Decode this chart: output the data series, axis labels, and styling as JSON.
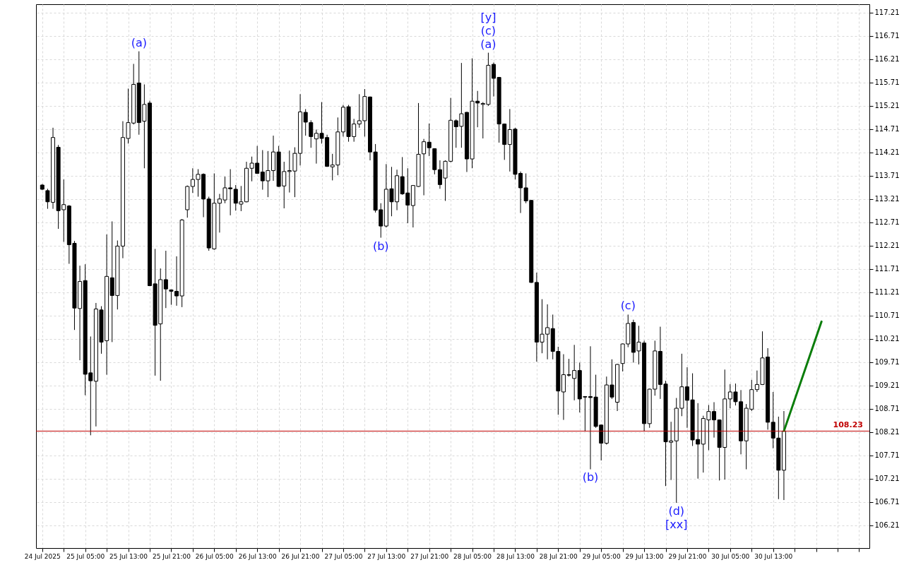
{
  "chart_data": {
    "type": "candlestick",
    "xlim": [
      "2025-07-24T20:30",
      "2025-07-31T06:15"
    ],
    "ylim": [
      105.72,
      117.39
    ],
    "yticks": [
      106.21,
      106.71,
      107.21,
      107.71,
      108.21,
      108.71,
      109.21,
      109.71,
      110.21,
      110.71,
      111.21,
      111.71,
      112.21,
      112.71,
      113.21,
      113.71,
      114.21,
      114.71,
      115.21,
      115.71,
      116.21,
      116.71,
      117.21
    ],
    "xticks": [
      {
        "value": "2025-07-24T21:00",
        "label": "24 Jul 2025"
      },
      {
        "value": "2025-07-25T01:00",
        "label": null
      },
      {
        "value": "2025-07-25T05:00",
        "label": "25 Jul 05:00"
      },
      {
        "value": "2025-07-25T09:00",
        "label": null
      },
      {
        "value": "2025-07-25T13:00",
        "label": "25 Jul 13:00"
      },
      {
        "value": "2025-07-25T17:00",
        "label": null
      },
      {
        "value": "2025-07-25T21:00",
        "label": "25 Jul 21:00"
      },
      {
        "value": "2025-07-26T01:00",
        "label": null
      },
      {
        "value": "2025-07-26T05:00",
        "label": "26 Jul 05:00"
      },
      {
        "value": "2025-07-26T09:00",
        "label": null
      },
      {
        "value": "2025-07-26T13:00",
        "label": "26 Jul 13:00"
      },
      {
        "value": "2025-07-26T17:00",
        "label": null
      },
      {
        "value": "2025-07-26T21:00",
        "label": "26 Jul 21:00"
      },
      {
        "value": "2025-07-27T01:00",
        "label": null
      },
      {
        "value": "2025-07-27T05:00",
        "label": "27 Jul 05:00"
      },
      {
        "value": "2025-07-27T09:00",
        "label": null
      },
      {
        "value": "2025-07-27T13:00",
        "label": "27 Jul 13:00"
      },
      {
        "value": "2025-07-27T17:00",
        "label": null
      },
      {
        "value": "2025-07-27T21:00",
        "label": "27 Jul 21:00"
      },
      {
        "value": "2025-07-28T01:00",
        "label": null
      },
      {
        "value": "2025-07-28T05:00",
        "label": "28 Jul 05:00"
      },
      {
        "value": "2025-07-28T09:00",
        "label": null
      },
      {
        "value": "2025-07-28T13:00",
        "label": "28 Jul 13:00"
      },
      {
        "value": "2025-07-28T17:00",
        "label": null
      },
      {
        "value": "2025-07-28T21:00",
        "label": "28 Jul 21:00"
      },
      {
        "value": "2025-07-29T01:00",
        "label": null
      },
      {
        "value": "2025-07-29T05:00",
        "label": "29 Jul 05:00"
      },
      {
        "value": "2025-07-29T09:00",
        "label": null
      },
      {
        "value": "2025-07-29T13:00",
        "label": "29 Jul 13:00"
      },
      {
        "value": "2025-07-29T17:00",
        "label": null
      },
      {
        "value": "2025-07-29T21:00",
        "label": "29 Jul 21:00"
      },
      {
        "value": "2025-07-30T01:00",
        "label": null
      },
      {
        "value": "2025-07-30T05:00",
        "label": "30 Jul 05:00"
      },
      {
        "value": "2025-07-30T09:00",
        "label": null
      },
      {
        "value": "2025-07-30T13:00",
        "label": "30 Jul 13:00"
      },
      {
        "value": "2025-07-30T17:00",
        "label": null
      },
      {
        "value": "2025-07-30T21:00",
        "label": null
      },
      {
        "value": "2025-07-31T01:00",
        "label": null
      },
      {
        "value": "2025-07-31T05:00",
        "label": null
      }
    ],
    "grid": true,
    "x": [
      "2025-07-24T21:00",
      "2025-07-24T22:00",
      "2025-07-24T23:00",
      "2025-07-25T00:00",
      "2025-07-25T01:00",
      "2025-07-25T02:00",
      "2025-07-25T03:00",
      "2025-07-25T04:00",
      "2025-07-25T05:00",
      "2025-07-25T06:00",
      "2025-07-25T07:00",
      "2025-07-25T08:00",
      "2025-07-25T09:00",
      "2025-07-25T10:00",
      "2025-07-25T11:00",
      "2025-07-25T12:00",
      "2025-07-25T13:00",
      "2025-07-25T14:00",
      "2025-07-25T15:00",
      "2025-07-25T16:00",
      "2025-07-25T17:00",
      "2025-07-25T18:00",
      "2025-07-25T19:00",
      "2025-07-25T20:00",
      "2025-07-25T21:00",
      "2025-07-25T22:00",
      "2025-07-25T23:00",
      "2025-07-26T00:00",
      "2025-07-26T01:00",
      "2025-07-26T02:00",
      "2025-07-26T03:00",
      "2025-07-26T04:00",
      "2025-07-26T05:00",
      "2025-07-26T06:00",
      "2025-07-26T07:00",
      "2025-07-26T08:00",
      "2025-07-26T09:00",
      "2025-07-26T10:00",
      "2025-07-26T11:00",
      "2025-07-26T12:00",
      "2025-07-26T13:00",
      "2025-07-26T14:00",
      "2025-07-26T15:00",
      "2025-07-26T16:00",
      "2025-07-26T17:00",
      "2025-07-26T18:00",
      "2025-07-26T19:00",
      "2025-07-26T20:00",
      "2025-07-26T21:00",
      "2025-07-26T22:00",
      "2025-07-26T23:00",
      "2025-07-27T00:00",
      "2025-07-27T01:00",
      "2025-07-27T02:00",
      "2025-07-27T03:00",
      "2025-07-27T04:00",
      "2025-07-27T05:00",
      "2025-07-27T06:00",
      "2025-07-27T07:00",
      "2025-07-27T08:00",
      "2025-07-27T09:00",
      "2025-07-27T10:00",
      "2025-07-27T11:00",
      "2025-07-27T12:00",
      "2025-07-27T13:00",
      "2025-07-27T14:00",
      "2025-07-27T15:00",
      "2025-07-27T16:00",
      "2025-07-27T17:00",
      "2025-07-27T18:00",
      "2025-07-27T19:00",
      "2025-07-27T20:00",
      "2025-07-27T21:00",
      "2025-07-27T22:00",
      "2025-07-27T23:00",
      "2025-07-28T00:00",
      "2025-07-28T01:00",
      "2025-07-28T02:00",
      "2025-07-28T03:00",
      "2025-07-28T04:00",
      "2025-07-28T05:00",
      "2025-07-28T06:00",
      "2025-07-28T07:00",
      "2025-07-28T08:00",
      "2025-07-28T09:00",
      "2025-07-28T10:00",
      "2025-07-28T11:00",
      "2025-07-28T12:00",
      "2025-07-28T13:00",
      "2025-07-28T14:00",
      "2025-07-28T15:00",
      "2025-07-28T16:00",
      "2025-07-28T17:00",
      "2025-07-28T18:00",
      "2025-07-28T19:00",
      "2025-07-28T20:00",
      "2025-07-28T21:00",
      "2025-07-28T22:00",
      "2025-07-28T23:00",
      "2025-07-29T00:00",
      "2025-07-29T01:00",
      "2025-07-29T02:00",
      "2025-07-29T03:00",
      "2025-07-29T04:00",
      "2025-07-29T05:00",
      "2025-07-29T06:00",
      "2025-07-29T07:00",
      "2025-07-29T08:00",
      "2025-07-29T09:00",
      "2025-07-29T10:00",
      "2025-07-29T11:00",
      "2025-07-29T12:00",
      "2025-07-29T13:00",
      "2025-07-29T14:00",
      "2025-07-29T15:00",
      "2025-07-29T16:00",
      "2025-07-29T17:00",
      "2025-07-29T18:00",
      "2025-07-29T19:00",
      "2025-07-29T20:00",
      "2025-07-29T21:00",
      "2025-07-29T22:00",
      "2025-07-29T23:00",
      "2025-07-30T00:00",
      "2025-07-30T01:00",
      "2025-07-30T02:00",
      "2025-07-30T03:00",
      "2025-07-30T04:00",
      "2025-07-30T05:00",
      "2025-07-30T06:00",
      "2025-07-30T07:00",
      "2025-07-30T08:00",
      "2025-07-30T09:00",
      "2025-07-30T10:00",
      "2025-07-30T11:00",
      "2025-07-30T12:00",
      "2025-07-30T13:00",
      "2025-07-30T14:00",
      "2025-07-30T15:00"
    ],
    "ohlc": [
      [
        113.51,
        113.53,
        113.4,
        113.42
      ],
      [
        113.39,
        113.43,
        113.0,
        113.15
      ],
      [
        113.14,
        114.74,
        113.0,
        114.53
      ],
      [
        114.32,
        114.37,
        112.57,
        112.96
      ],
      [
        112.98,
        113.63,
        112.29,
        113.09
      ],
      [
        113.06,
        113.08,
        111.82,
        112.23
      ],
      [
        112.26,
        112.31,
        110.4,
        110.87
      ],
      [
        110.86,
        111.78,
        109.75,
        111.44
      ],
      [
        111.46,
        111.81,
        109.0,
        109.45
      ],
      [
        109.48,
        110.26,
        108.14,
        109.31
      ],
      [
        109.3,
        110.98,
        108.33,
        110.85
      ],
      [
        110.83,
        110.91,
        109.89,
        110.14
      ],
      [
        110.17,
        112.45,
        109.44,
        111.55
      ],
      [
        111.52,
        112.73,
        110.14,
        111.14
      ],
      [
        111.14,
        112.32,
        110.84,
        112.2
      ],
      [
        112.2,
        114.88,
        111.94,
        114.53
      ],
      [
        114.51,
        115.58,
        114.4,
        114.85
      ],
      [
        114.84,
        116.11,
        114.81,
        115.67
      ],
      [
        115.7,
        116.38,
        114.59,
        114.85
      ],
      [
        114.88,
        115.67,
        113.87,
        115.24
      ],
      [
        115.27,
        115.32,
        111.34,
        111.35
      ],
      [
        111.39,
        112.14,
        109.42,
        110.5
      ],
      [
        110.53,
        111.72,
        109.31,
        111.48
      ],
      [
        111.48,
        112.1,
        110.87,
        111.28
      ],
      [
        111.26,
        111.27,
        110.94,
        111.23
      ],
      [
        111.23,
        111.98,
        110.92,
        111.13
      ],
      [
        111.13,
        112.78,
        110.89,
        112.76
      ],
      [
        112.98,
        113.5,
        112.81,
        113.48
      ],
      [
        113.48,
        113.87,
        113.34,
        113.63
      ],
      [
        113.63,
        113.85,
        113.26,
        113.74
      ],
      [
        113.74,
        113.76,
        112.82,
        113.21
      ],
      [
        113.21,
        113.26,
        112.1,
        112.16
      ],
      [
        112.14,
        113.76,
        112.12,
        113.12
      ],
      [
        113.12,
        113.32,
        112.49,
        113.21
      ],
      [
        113.19,
        113.69,
        113.12,
        113.45
      ],
      [
        113.45,
        113.85,
        112.86,
        113.43
      ],
      [
        113.42,
        113.51,
        112.96,
        113.12
      ],
      [
        113.1,
        113.49,
        112.95,
        113.15
      ],
      [
        113.15,
        114.01,
        113.14,
        113.87
      ],
      [
        113.87,
        114.12,
        113.59,
        113.98
      ],
      [
        113.98,
        114.35,
        113.75,
        113.76
      ],
      [
        113.79,
        114.26,
        113.41,
        113.6
      ],
      [
        113.6,
        114.24,
        113.25,
        113.82
      ],
      [
        113.82,
        114.57,
        113.6,
        114.22
      ],
      [
        114.22,
        114.35,
        113.47,
        113.48
      ],
      [
        113.49,
        114.01,
        113.01,
        113.8
      ],
      [
        113.8,
        114.25,
        113.35,
        113.82
      ],
      [
        113.81,
        114.32,
        113.25,
        114.19
      ],
      [
        114.19,
        115.46,
        113.93,
        115.08
      ],
      [
        115.07,
        115.14,
        114.57,
        114.86
      ],
      [
        114.85,
        114.9,
        114.31,
        114.55
      ],
      [
        114.5,
        114.7,
        113.97,
        114.62
      ],
      [
        114.62,
        115.29,
        114.4,
        114.51
      ],
      [
        114.53,
        114.59,
        113.9,
        113.91
      ],
      [
        113.9,
        114.18,
        113.61,
        113.94
      ],
      [
        113.94,
        114.96,
        113.72,
        114.65
      ],
      [
        114.65,
        115.23,
        114.55,
        115.18
      ],
      [
        115.19,
        115.23,
        114.44,
        114.55
      ],
      [
        114.55,
        114.93,
        114.44,
        114.82
      ],
      [
        114.82,
        115.46,
        114.74,
        114.89
      ],
      [
        114.89,
        115.57,
        114.55,
        115.41
      ],
      [
        115.4,
        115.41,
        114.04,
        114.22
      ],
      [
        114.22,
        114.39,
        112.92,
        112.97
      ],
      [
        112.98,
        113.12,
        112.38,
        112.63
      ],
      [
        112.63,
        113.96,
        112.6,
        113.42
      ],
      [
        113.43,
        113.9,
        112.84,
        113.15
      ],
      [
        113.15,
        113.84,
        112.97,
        113.71
      ],
      [
        113.69,
        114.11,
        113.3,
        113.32
      ],
      [
        113.34,
        113.87,
        112.69,
        113.08
      ],
      [
        113.07,
        113.51,
        112.6,
        113.5
      ],
      [
        113.48,
        115.27,
        113.47,
        114.17
      ],
      [
        114.18,
        114.5,
        113.29,
        114.44
      ],
      [
        114.43,
        114.83,
        114.13,
        114.31
      ],
      [
        114.29,
        114.3,
        113.74,
        113.84
      ],
      [
        113.84,
        114.04,
        113.43,
        113.52
      ],
      [
        113.66,
        114.04,
        113.17,
        114.02
      ],
      [
        114.02,
        115.38,
        114.0,
        114.9
      ],
      [
        114.89,
        114.92,
        114.31,
        114.76
      ],
      [
        114.77,
        116.13,
        114.31,
        115.04
      ],
      [
        115.07,
        115.08,
        113.79,
        114.07
      ],
      [
        114.07,
        116.23,
        113.87,
        115.31
      ],
      [
        115.31,
        115.53,
        114.75,
        115.27
      ],
      [
        115.24,
        115.29,
        114.51,
        115.26
      ],
      [
        115.24,
        116.35,
        115.21,
        116.08
      ],
      [
        116.1,
        116.14,
        115.41,
        115.8
      ],
      [
        115.82,
        115.83,
        114.42,
        114.82
      ],
      [
        114.82,
        114.83,
        114.05,
        114.38
      ],
      [
        114.38,
        115.14,
        113.8,
        114.7
      ],
      [
        114.71,
        114.74,
        113.63,
        113.74
      ],
      [
        113.76,
        113.8,
        112.91,
        113.45
      ],
      [
        113.45,
        113.76,
        113.12,
        113.17
      ],
      [
        113.18,
        113.19,
        111.41,
        111.42
      ],
      [
        111.42,
        111.63,
        109.72,
        110.14
      ],
      [
        110.14,
        111.06,
        109.9,
        110.31
      ],
      [
        110.31,
        110.95,
        109.77,
        110.45
      ],
      [
        110.43,
        110.73,
        109.77,
        109.94
      ],
      [
        109.94,
        110.04,
        108.58,
        109.09
      ],
      [
        109.07,
        109.88,
        108.47,
        109.44
      ],
      [
        109.44,
        109.78,
        109.4,
        109.43
      ],
      [
        109.36,
        110.08,
        108.89,
        109.53
      ],
      [
        109.53,
        109.7,
        108.63,
        108.92
      ],
      [
        108.97,
        108.98,
        108.22,
        108.96
      ],
      [
        108.97,
        110.05,
        107.41,
        108.95
      ],
      [
        108.96,
        109.44,
        108.3,
        108.33
      ],
      [
        108.36,
        108.37,
        107.6,
        107.97
      ],
      [
        107.97,
        109.4,
        107.94,
        109.22
      ],
      [
        109.22,
        109.77,
        108.92,
        108.96
      ],
      [
        108.85,
        109.67,
        108.66,
        109.66
      ],
      [
        109.68,
        110.11,
        109.51,
        110.1
      ],
      [
        110.1,
        110.73,
        110.03,
        110.54
      ],
      [
        110.56,
        110.62,
        109.7,
        109.92
      ],
      [
        109.95,
        110.49,
        109.66,
        110.14
      ],
      [
        110.12,
        110.17,
        108.22,
        108.39
      ],
      [
        108.39,
        109.14,
        108.3,
        109.13
      ],
      [
        109.13,
        110.17,
        108.99,
        109.95
      ],
      [
        109.94,
        110.47,
        108.92,
        109.23
      ],
      [
        109.24,
        109.31,
        107.05,
        108.0
      ],
      [
        107.99,
        108.43,
        107.18,
        108.02
      ],
      [
        108.02,
        108.94,
        106.69,
        108.72
      ],
      [
        108.72,
        109.89,
        108.55,
        109.18
      ],
      [
        109.18,
        109.6,
        108.3,
        108.89
      ],
      [
        108.9,
        109.47,
        107.91,
        108.04
      ],
      [
        108.05,
        108.83,
        107.21,
        107.95
      ],
      [
        107.95,
        108.56,
        107.34,
        108.5
      ],
      [
        108.47,
        108.79,
        107.82,
        108.65
      ],
      [
        108.65,
        108.85,
        108.09,
        108.47
      ],
      [
        108.47,
        108.48,
        107.17,
        107.88
      ],
      [
        107.88,
        109.55,
        107.19,
        108.92
      ],
      [
        108.92,
        109.24,
        108.72,
        109.07
      ],
      [
        109.07,
        109.25,
        108.78,
        108.86
      ],
      [
        108.86,
        109.11,
        107.73,
        108.02
      ],
      [
        108.02,
        108.81,
        107.41,
        108.72
      ],
      [
        108.7,
        109.33,
        108.66,
        109.12
      ],
      [
        109.12,
        109.53,
        109.07,
        109.23
      ],
      [
        109.23,
        110.37,
        109.22,
        109.8
      ],
      [
        109.82,
        110.01,
        108.26,
        108.42
      ],
      [
        108.42,
        109.07,
        107.86,
        108.08
      ],
      [
        108.08,
        108.54,
        106.77,
        107.39
      ],
      [
        107.39,
        108.66,
        106.75,
        108.23
      ]
    ],
    "series": [
      {
        "type": "line",
        "color": "#0a7d0a",
        "x": [
          "2025-07-30T15:00",
          "2025-07-30T22:00"
        ],
        "values": [
          108.23,
          110.58
        ]
      }
    ],
    "ref_lines": [
      {
        "axis": "y",
        "value": 108.23,
        "label": "108.23",
        "color": "#c00000"
      }
    ],
    "annotations": [
      {
        "text": "(a)",
        "x": "2025-07-25T15:00",
        "y": 116.38
      },
      {
        "text": "(a)",
        "x": "2025-07-28T08:00",
        "y": 116.35
      },
      {
        "text": "(c)",
        "x": "2025-07-28T08:00",
        "y": 116.35
      },
      {
        "text": "[y]",
        "x": "2025-07-28T08:00",
        "y": 116.35
      },
      {
        "text": "(b)",
        "x": "2025-07-27T12:00",
        "y": 112.38
      },
      {
        "text": "(b)",
        "x": "2025-07-29T03:00",
        "y": 107.41
      },
      {
        "text": "(c)",
        "x": "2025-07-29T10:00",
        "y": 110.73
      },
      {
        "text": "(d)",
        "x": "2025-07-29T19:00",
        "y": 106.69
      },
      {
        "text": "[xx]",
        "x": "2025-07-29T19:00",
        "y": 106.69
      }
    ]
  }
}
